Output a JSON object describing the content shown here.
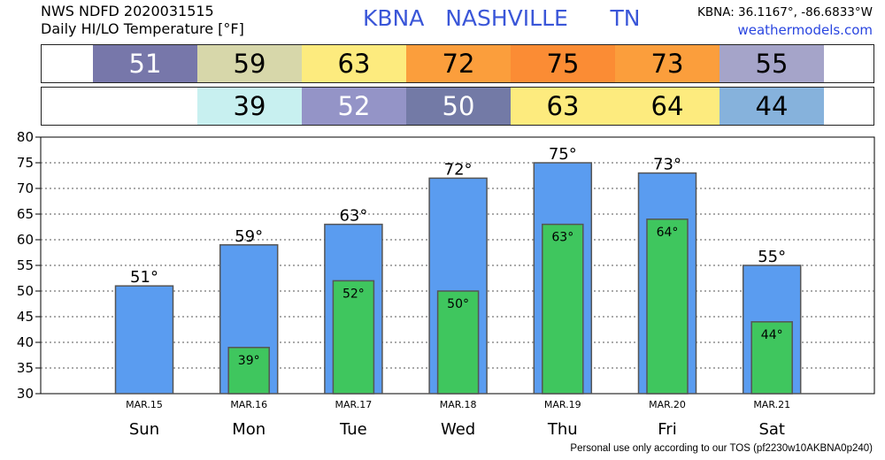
{
  "header": {
    "line1": "NWS NDFD 2020031515",
    "line2": "Daily HI/LO Temperature [°F]",
    "station": "KBNA",
    "city": "NASHVILLE",
    "state": "TN",
    "coords": "KBNA: 36.1167°, -86.6833°W",
    "site": "weathermodels.com"
  },
  "hi_strip": [
    {
      "value": "51",
      "color": "#7777aa",
      "text_color": "#ffffff"
    },
    {
      "value": "59",
      "color": "#d7d7aa",
      "text_color": "#000000"
    },
    {
      "value": "63",
      "color": "#fdeb7e",
      "text_color": "#000000"
    },
    {
      "value": "72",
      "color": "#fb9e3c",
      "text_color": "#000000"
    },
    {
      "value": "75",
      "color": "#fb8c34",
      "text_color": "#000000"
    },
    {
      "value": "73",
      "color": "#fb9e3c",
      "text_color": "#000000"
    },
    {
      "value": "55",
      "color": "#a5a4c9",
      "text_color": "#000000"
    }
  ],
  "lo_strip": [
    {
      "value": "",
      "color": "#ffffff",
      "text_color": "#000000"
    },
    {
      "value": "39",
      "color": "#c8f0f0",
      "text_color": "#000000"
    },
    {
      "value": "52",
      "color": "#9494c7",
      "text_color": "#ffffff"
    },
    {
      "value": "50",
      "color": "#737aa6",
      "text_color": "#ffffff"
    },
    {
      "value": "63",
      "color": "#fdeb7e",
      "text_color": "#000000"
    },
    {
      "value": "64",
      "color": "#fdeb7e",
      "text_color": "#000000"
    },
    {
      "value": "44",
      "color": "#86b2dc",
      "text_color": "#000000"
    }
  ],
  "chart_data": {
    "type": "bar",
    "categories": [
      "Sun",
      "Mon",
      "Tue",
      "Wed",
      "Thu",
      "Fri",
      "Sat"
    ],
    "dates": [
      "MAR.15",
      "MAR.16",
      "MAR.17",
      "MAR.18",
      "MAR.19",
      "MAR.20",
      "MAR.21"
    ],
    "series": [
      {
        "values": [
          51,
          59,
          63,
          72,
          75,
          73,
          55
        ],
        "color": "#5a9cf0"
      },
      {
        "values": [
          null,
          39,
          52,
          50,
          63,
          64,
          44
        ],
        "color": "#3fc65e"
      }
    ],
    "hi_labels": [
      "51°",
      "59°",
      "63°",
      "72°",
      "75°",
      "73°",
      "55°"
    ],
    "lo_labels": [
      "",
      "39°",
      "52°",
      "50°",
      "63°",
      "64°",
      "44°"
    ],
    "yticks": [
      "30",
      "35",
      "40",
      "45",
      "50",
      "55",
      "60",
      "65",
      "70",
      "75",
      "80"
    ],
    "ylim": [
      30,
      80
    ],
    "grid": true,
    "title": "",
    "xlabel": "",
    "ylabel": ""
  },
  "footer": "Personal use only according to our TOS (pf2230w10AKBNA0p240)"
}
